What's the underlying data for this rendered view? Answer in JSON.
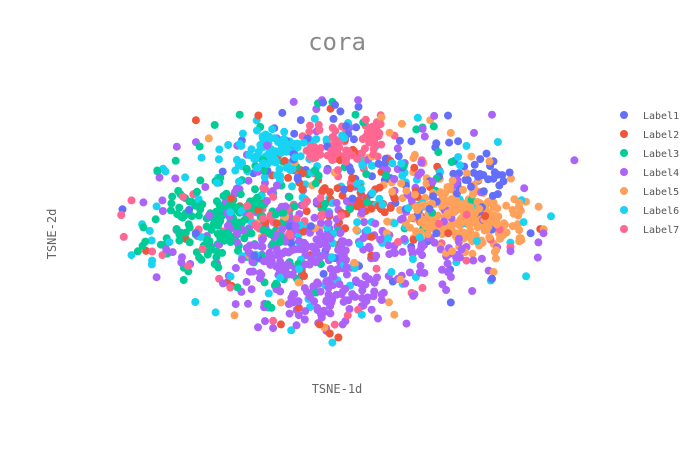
{
  "chart_data": {
    "type": "scatter",
    "title": "cora",
    "xlabel": "TSNE-1d",
    "ylabel": "TSNE-2d",
    "showgrid": false,
    "legend_position": "right",
    "xlim": [
      -100,
      100
    ],
    "ylim": [
      -85,
      85
    ],
    "series": [
      {
        "name": "Label1",
        "color": "#636efa",
        "clusters": [
          {
            "cx": -6,
            "cy": 38,
            "sx": 16,
            "sy": 14,
            "n": 35
          },
          {
            "cx": 38,
            "cy": 16,
            "sx": 16,
            "sy": 12,
            "n": 45
          },
          {
            "cx": 58,
            "cy": 22,
            "sx": 6,
            "sy": 4,
            "n": 15
          },
          {
            "cx": 0,
            "cy": 0,
            "sx": 45,
            "sy": 32,
            "n": 30
          }
        ],
        "points": [
          [
            44,
            -48
          ],
          [
            60,
            -8
          ],
          [
            75,
            -10
          ],
          [
            -55,
            -10
          ],
          [
            -15,
            -35
          ],
          [
            60,
            -35
          ]
        ]
      },
      {
        "name": "Label2",
        "color": "#ef553b",
        "clusters": [
          {
            "cx": 5,
            "cy": 10,
            "sx": 12,
            "sy": 8,
            "n": 45
          },
          {
            "cx": 0,
            "cy": 0,
            "sx": 40,
            "sy": 30,
            "n": 45
          }
        ],
        "points": [
          [
            -3,
            -65
          ],
          [
            -7,
            -60
          ],
          [
            43,
            -10
          ],
          [
            -55,
            52
          ],
          [
            -22,
            -60
          ]
        ]
      },
      {
        "name": "Label3",
        "color": "#00cc96",
        "clusters": [
          {
            "cx": -46,
            "cy": -6,
            "sx": 14,
            "sy": 12,
            "n": 170
          },
          {
            "cx": -4,
            "cy": 20,
            "sx": 34,
            "sy": 22,
            "n": 40
          },
          {
            "cx": -20,
            "cy": -40,
            "sx": 14,
            "sy": 8,
            "n": 12
          }
        ],
        "points": [
          [
            -2,
            62
          ],
          [
            7,
            55
          ],
          [
            -38,
            55
          ],
          [
            33,
            48
          ]
        ]
      },
      {
        "name": "Label4",
        "color": "#ab63fa",
        "clusters": [
          {
            "cx": -12,
            "cy": -18,
            "sx": 20,
            "sy": 14,
            "n": 190
          },
          {
            "cx": -6,
            "cy": -48,
            "sx": 14,
            "sy": 6,
            "n": 70
          },
          {
            "cx": 30,
            "cy": -22,
            "sx": 14,
            "sy": 10,
            "n": 50
          },
          {
            "cx": 0,
            "cy": 0,
            "sx": 48,
            "sy": 34,
            "n": 110
          }
        ],
        "points": [
          [
            80,
            -10
          ],
          [
            78,
            -15
          ],
          [
            -68,
            8
          ],
          [
            -63,
            20
          ],
          [
            -55,
            40
          ],
          [
            53,
            45
          ],
          [
            60,
            55
          ],
          [
            -17,
            62
          ],
          [
            8,
            63
          ],
          [
            -6,
            63
          ],
          [
            -25,
            -62
          ]
        ]
      },
      {
        "name": "Label5",
        "color": "#ffa15a",
        "clusters": [
          {
            "cx": 42,
            "cy": 2,
            "sx": 10,
            "sy": 8,
            "n": 120
          },
          {
            "cx": 60,
            "cy": -4,
            "sx": 10,
            "sy": 8,
            "n": 90
          },
          {
            "cx": 20,
            "cy": 0,
            "sx": 30,
            "sy": 24,
            "n": 50
          }
        ],
        "points": [
          [
            -40,
            -55
          ],
          [
            -22,
            -48
          ],
          [
            -50,
            42
          ],
          [
            25,
            50
          ],
          [
            36,
            52
          ],
          [
            44,
            45
          ],
          [
            52,
            32
          ],
          [
            70,
            -5
          ]
        ]
      },
      {
        "name": "Label6",
        "color": "#19d3f3",
        "clusters": [
          {
            "cx": -24,
            "cy": 34,
            "sx": 8,
            "sy": 6,
            "n": 85
          },
          {
            "cx": -2,
            "cy": 2,
            "sx": 36,
            "sy": 26,
            "n": 140
          }
        ],
        "points": [
          [
            -80,
            -22
          ],
          [
            -72,
            -25
          ],
          [
            -2,
            -70
          ],
          [
            -35,
            24
          ]
        ]
      },
      {
        "name": "Label7",
        "color": "#ff6692",
        "clusters": [
          {
            "cx": 0,
            "cy": 36,
            "sx": 8,
            "sy": 7,
            "n": 70
          },
          {
            "cx": 14,
            "cy": 46,
            "sx": 2,
            "sy": 4,
            "n": 25
          },
          {
            "cx": -24,
            "cy": 0,
            "sx": 10,
            "sy": 8,
            "n": 30
          },
          {
            "cx": 0,
            "cy": 0,
            "sx": 36,
            "sy": 26,
            "n": 30
          }
        ],
        "points": [
          [
            -84,
            0
          ],
          [
            -80,
            8
          ],
          [
            -83,
            -12
          ],
          [
            -72,
            -20
          ],
          [
            -68,
            -22
          ],
          [
            -60,
            10
          ],
          [
            -58,
            -28
          ],
          [
            -46,
            -35
          ],
          [
            -25,
            -58
          ],
          [
            4,
            -55
          ],
          [
            63,
            -8
          ],
          [
            33,
            -40
          ],
          [
            8,
            -52
          ],
          [
            50,
            -25
          ]
        ]
      }
    ],
    "outliers": [
      {
        "series": "Label4",
        "x": 92,
        "y": 30
      }
    ]
  }
}
